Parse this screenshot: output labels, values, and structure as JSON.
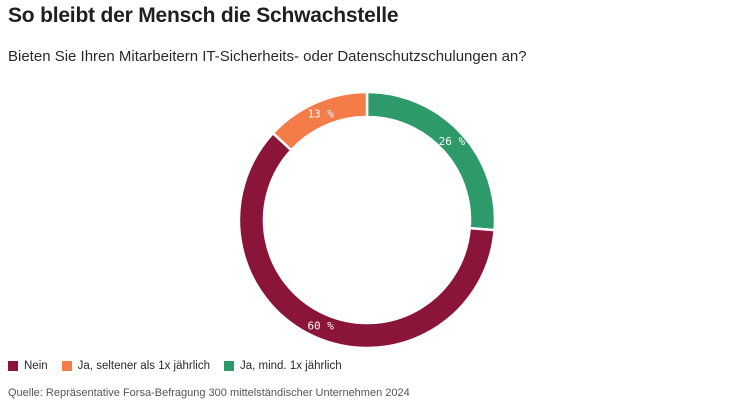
{
  "title": "So bleibt der Mensch die Schwachstelle",
  "subtitle": "Bieten Sie Ihren Mitarbeitern IT-Sicherheits- oder Datenschutzschulungen an?",
  "source": "Quelle: Repräsentative Forsa-Befragung 300 mittelständischer Unternehmen 2024",
  "chart_data": {
    "type": "pie",
    "title": "So bleibt der Mensch die Schwachstelle",
    "subtitle": "Bieten Sie Ihren Mitarbeitern IT-Sicherheits- oder Datenschutzschulungen an?",
    "categories": [
      "Ja, mind. 1x jährlich",
      "Nein",
      "Ja, seltener als 1x jährlich"
    ],
    "values": [
      26,
      60,
      13
    ],
    "labels": [
      "26 %",
      "60 %",
      "13 %"
    ],
    "colors": [
      "#2e9a6a",
      "#8a1538",
      "#f47c48"
    ],
    "donut": true,
    "legend": {
      "position": "bottom-left",
      "items": [
        {
          "label": "Nein",
          "color": "#8a1538"
        },
        {
          "label": "Ja, seltener als 1x jährlich",
          "color": "#f47c48"
        },
        {
          "label": "Ja, mind. 1x jährlich",
          "color": "#2e9a6a"
        }
      ]
    }
  }
}
